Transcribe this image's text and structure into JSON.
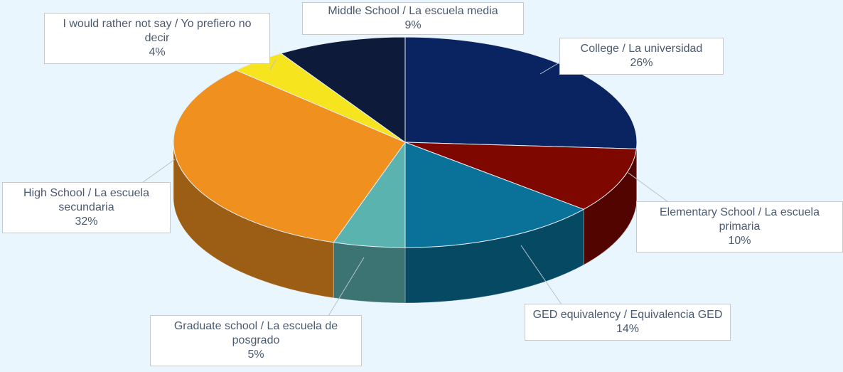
{
  "chart_data": {
    "type": "pie3d",
    "categories": [
      "College / La universidad",
      "Elementary School / La escuela primaria",
      "GED equivalency / Equivalencia GED",
      "Graduate school / La escuela de posgrado",
      "High School / La escuela secundaria",
      "I would rather not say / Yo prefiero no decir",
      "Middle School / La escuela media"
    ],
    "values": [
      26,
      10,
      14,
      5,
      32,
      4,
      9
    ],
    "value_labels": [
      "26%",
      "10%",
      "14%",
      "5%",
      "32%",
      "4%",
      "9%"
    ],
    "colors": [
      "#0a2461",
      "#7e0800",
      "#0a7199",
      "#5bb3b0",
      "#f0901f",
      "#f6e41f",
      "#0d1a3a"
    ]
  }
}
